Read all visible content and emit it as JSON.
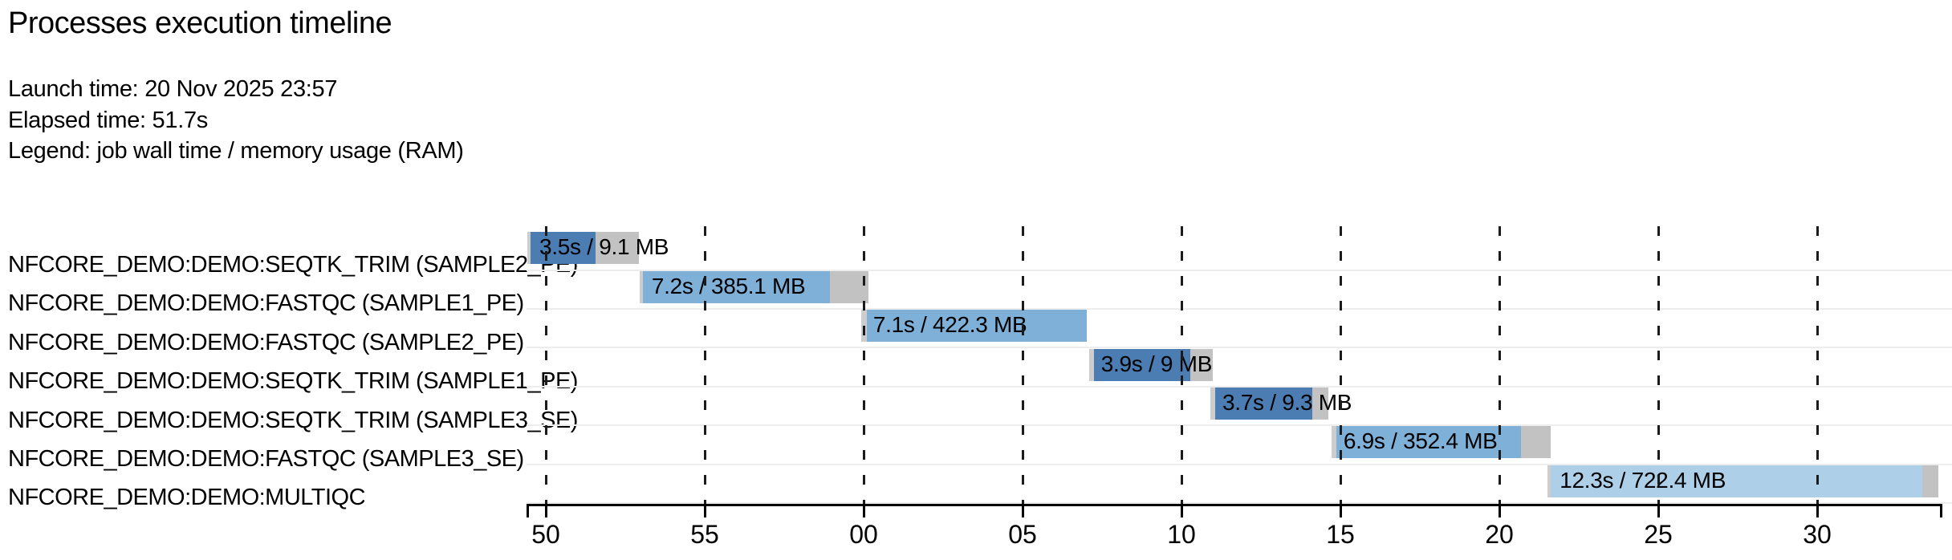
{
  "page": {
    "title": "Processes execution timeline"
  },
  "header": {
    "lines": [
      "Launch time: 20 Nov 2025 23:57",
      "Elapsed time: 51.7s",
      "Legend: job wall time / memory usage (RAM)"
    ]
  },
  "chart_data": {
    "type": "gantt",
    "title": "Processes execution timeline",
    "launch_time": "20 Nov 2025 23:57",
    "elapsed_time": "51.7s",
    "legend": "job wall time / memory usage (RAM)",
    "x_axis": {
      "unit": "seconds (clock seconds, wrapping past the minute)",
      "tick_labels": [
        "50",
        "55",
        "00",
        "05",
        "10",
        "15",
        "20",
        "25",
        "30"
      ],
      "tick_seconds": [
        50,
        55,
        60,
        65,
        70,
        75,
        80,
        85,
        90
      ]
    },
    "colors": {
      "seqtk_trim": "#4b7db3",
      "fastqc": "#7fb0d8",
      "multiqc": "#aecfe8",
      "overhead_tail": "#c2c2c2",
      "submit_sliver": "#cdcdcd",
      "grid": "#1b1b1b",
      "separator": "#ededed",
      "axis": "#000000"
    },
    "tasks": [
      {
        "name": "NFCORE_DEMO:DEMO:SEQTK_TRIM (SAMPLE2_PE)",
        "label": "3.5s / 9.1 MB",
        "wall_time": "3.5s",
        "memory": "9.1 MB",
        "start_s": 49.42,
        "duration_s": 3.5,
        "pre_s": 0.1,
        "run_s": 2.05,
        "color_key": "seqtk_trim"
      },
      {
        "name": "NFCORE_DEMO:DEMO:FASTQC (SAMPLE1_PE)",
        "label": "7.2s / 385.1 MB",
        "wall_time": "7.2s",
        "memory": "385.1 MB",
        "start_s": 52.95,
        "duration_s": 7.2,
        "pre_s": 0.1,
        "run_s": 5.9,
        "color_key": "fastqc"
      },
      {
        "name": "NFCORE_DEMO:DEMO:FASTQC (SAMPLE2_PE)",
        "label": "7.1s / 422.3 MB",
        "wall_time": "7.1s",
        "memory": "422.3 MB",
        "start_s": 59.92,
        "duration_s": 7.1,
        "pre_s": 0.18,
        "run_s": 6.92,
        "color_key": "fastqc"
      },
      {
        "name": "NFCORE_DEMO:DEMO:SEQTK_TRIM (SAMPLE1_PE)",
        "label": "3.9s / 9 MB",
        "wall_time": "3.9s",
        "memory": "9 MB",
        "start_s": 67.09,
        "duration_s": 3.9,
        "pre_s": 0.15,
        "run_s": 3.05,
        "color_key": "seqtk_trim"
      },
      {
        "name": "NFCORE_DEMO:DEMO:SEQTK_TRIM (SAMPLE3_SE)",
        "label": "3.7s / 9.3 MB",
        "wall_time": "3.7s",
        "memory": "9.3 MB",
        "start_s": 70.91,
        "duration_s": 3.7,
        "pre_s": 0.15,
        "run_s": 3.05,
        "color_key": "seqtk_trim"
      },
      {
        "name": "NFCORE_DEMO:DEMO:FASTQC (SAMPLE3_SE)",
        "label": "6.9s / 352.4 MB",
        "wall_time": "6.9s",
        "memory": "352.4 MB",
        "start_s": 74.72,
        "duration_s": 6.9,
        "pre_s": 0.15,
        "run_s": 5.8,
        "color_key": "fastqc"
      },
      {
        "name": "NFCORE_DEMO:DEMO:MULTIQC",
        "label": "12.3s / 722.4 MB",
        "wall_time": "12.3s",
        "memory": "722.4 MB",
        "start_s": 81.52,
        "duration_s": 12.3,
        "pre_s": 0.1,
        "run_s": 11.7,
        "color_key": "multiqc"
      }
    ]
  }
}
